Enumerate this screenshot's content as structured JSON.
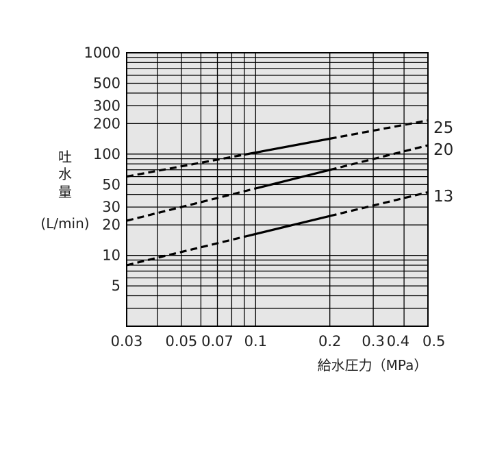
{
  "chart_data": {
    "type": "line",
    "xscale": "log",
    "yscale": "log",
    "xlim": [
      0.03,
      0.5
    ],
    "ylim": [
      2,
      1000
    ],
    "xticks": [
      0.03,
      0.05,
      0.07,
      0.1,
      0.2,
      0.3,
      0.4,
      0.5
    ],
    "xtick_labels": [
      "0.03",
      "0.05",
      "0.07",
      "0.1",
      "0.2",
      "0.3",
      "0.4",
      "0.5"
    ],
    "yticks": [
      5,
      10,
      20,
      30,
      50,
      100,
      200,
      300,
      500,
      1000
    ],
    "ytick_labels": [
      "5",
      "10",
      "20",
      "30",
      "50",
      "100",
      "200",
      "300",
      "500",
      "1000"
    ],
    "xlabel": "給水圧力（MPa）",
    "ylabel_chars": [
      "吐",
      "水",
      "量"
    ],
    "ylabel_unit": "(L/min)",
    "grid": true,
    "background": "#e6e6e6",
    "series": [
      {
        "name": "25",
        "solid_range": [
          0.09,
          0.2
        ],
        "points": [
          [
            0.03,
            60
          ],
          [
            0.5,
            215
          ]
        ]
      },
      {
        "name": "20",
        "solid_range": [
          0.1,
          0.2
        ],
        "points": [
          [
            0.03,
            22
          ],
          [
            0.5,
            122
          ]
        ]
      },
      {
        "name": "13",
        "solid_range": [
          0.09,
          0.2
        ],
        "points": [
          [
            0.03,
            8
          ],
          [
            0.5,
            42
          ]
        ]
      }
    ]
  }
}
